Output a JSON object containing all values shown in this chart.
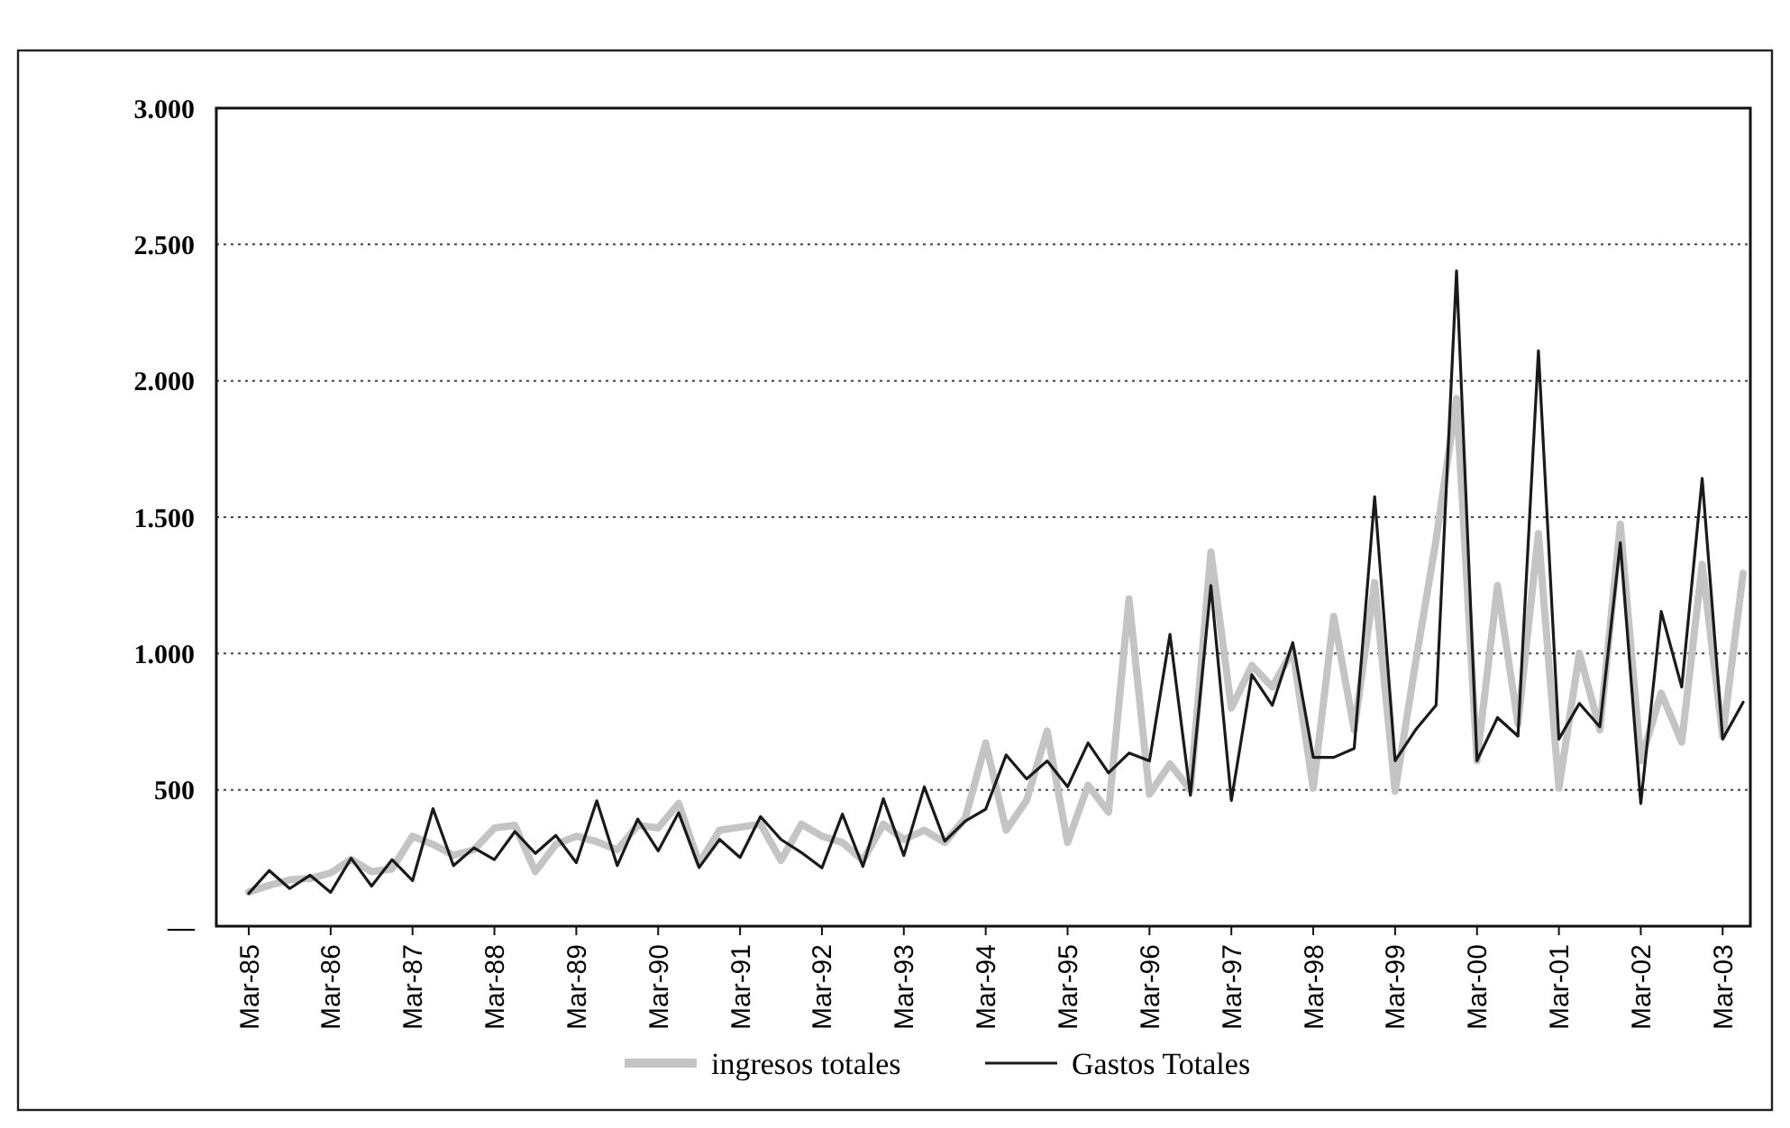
{
  "chart_data": {
    "type": "line",
    "categories": [
      "Mar-85",
      null,
      null,
      null,
      "Mar-86",
      null,
      null,
      null,
      "Mar-87",
      null,
      null,
      null,
      "Mar-88",
      null,
      null,
      null,
      "Mar-89",
      null,
      null,
      null,
      "Mar-90",
      null,
      null,
      null,
      "Mar-91",
      null,
      null,
      null,
      "Mar-92",
      null,
      null,
      null,
      "Mar-93",
      null,
      null,
      null,
      "Mar-94",
      null,
      null,
      null,
      "Mar-95",
      null,
      null,
      null,
      "Mar-96",
      null,
      null,
      null,
      "Mar-97",
      null,
      null,
      null,
      "Mar-98",
      null,
      null,
      null,
      "Mar-99",
      null,
      null,
      null,
      "Mar-00",
      null,
      null,
      null,
      "Mar-01",
      null,
      null,
      null,
      "Mar-02",
      null,
      null,
      null,
      "Mar-03",
      null
    ],
    "series": [
      {
        "name": "ingresos totales",
        "color": "#c4c4c4",
        "values": [
          125,
          150,
          170,
          175,
          195,
          245,
          200,
          210,
          330,
          300,
          260,
          280,
          360,
          370,
          200,
          300,
          330,
          310,
          280,
          370,
          360,
          450,
          230,
          352,
          363,
          374,
          241,
          374,
          330,
          307,
          241,
          374,
          318,
          352,
          307,
          396,
          672,
          352,
          462,
          716,
          307,
          517,
          418,
          1200,
          484,
          595,
          500,
          1372,
          800,
          956,
          877,
          1012,
          506,
          1136,
          720,
          1260,
          495,
          967,
          1417,
          1935,
          607,
          1249,
          742,
          1440,
          506,
          1001,
          720,
          1474,
          607,
          855,
          675,
          1327,
          697,
          1294
        ]
      },
      {
        "name": "Gastos Totales",
        "color": "#1a1a1a",
        "values": [
          120,
          204,
          138,
          187,
          124,
          249,
          147,
          244,
          167,
          431,
          222,
          287,
          244,
          347,
          267,
          333,
          233,
          460,
          222,
          393,
          276,
          416,
          215,
          318,
          252,
          402,
          318,
          270,
          214,
          411,
          219,
          467,
          259,
          511,
          312,
          385,
          429,
          628,
          540,
          606,
          511,
          672,
          562,
          635,
          606,
          1070,
          480,
          1249,
          461,
          922,
          810,
          1040,
          619,
          619,
          652,
          1575,
          607,
          720,
          810,
          2403,
          607,
          765,
          697,
          2110,
          686,
          817,
          731,
          1406,
          450,
          1154,
          877,
          1642,
          686,
          821
        ]
      }
    ],
    "ylim": [
      0,
      3000
    ],
    "yticks": [
      {
        "value": 0,
        "label": "—"
      },
      500,
      {
        "value": 1000,
        "label": "1.000"
      },
      {
        "value": 1500,
        "label": "1.500"
      },
      {
        "value": 2000,
        "label": "2.000"
      },
      {
        "value": 2500,
        "label": "2.500"
      },
      {
        "value": 3000,
        "label": "3.000"
      }
    ],
    "grid": "y",
    "legend": "bottom",
    "marker": "none",
    "line_style": "solid"
  }
}
